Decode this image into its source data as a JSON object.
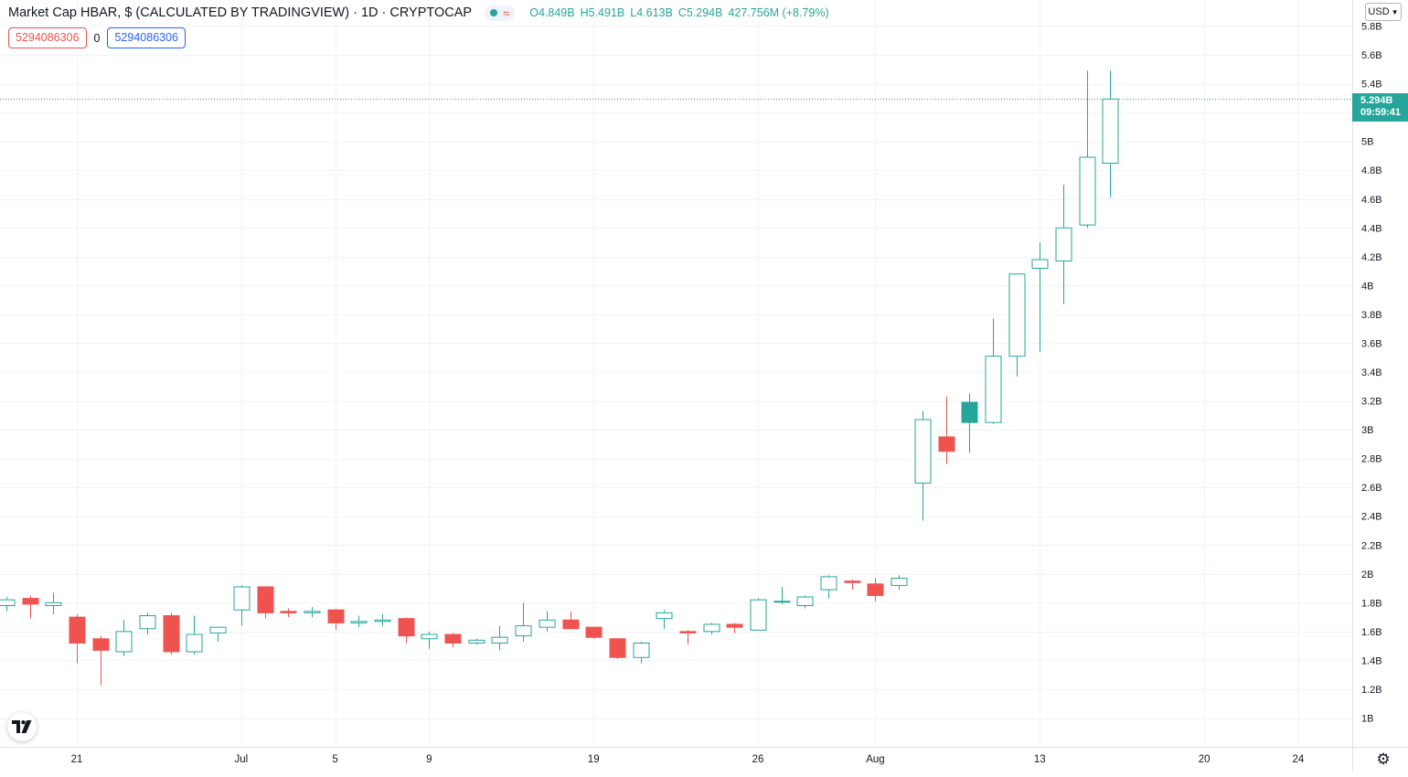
{
  "header": {
    "title": "Market Cap HBAR, $ (CALCULATED BY TRADINGVIEW) · 1D · CRYPTOCAP",
    "status_dot_color": "#26a69a",
    "approx_symbol": "≈",
    "ohlc": {
      "open_label": "O",
      "open": "4.849B",
      "high_label": "H",
      "high": "5.491B",
      "low_label": "L",
      "low": "4.613B",
      "close_label": "C",
      "close": "5.294B",
      "change": "427.756M (+8.79%)"
    }
  },
  "badges": {
    "left_value": "5294086306",
    "middle": "0",
    "right_value": "5294086306"
  },
  "currency_selector": {
    "label": "USD",
    "icon": "chevron-down-icon"
  },
  "price_label": {
    "value": "5.294B",
    "countdown": "09:59:41"
  },
  "colors": {
    "up": "#26a69a",
    "down": "#ef5350",
    "grid": "#f0f3fa",
    "axis_text": "#131722"
  },
  "chart_data": {
    "type": "candlestick",
    "title": "Market Cap HBAR, $ (CALCULATED BY TRADINGVIEW)",
    "interval": "1D",
    "unit": "B",
    "y_axis": {
      "range": [
        0.8,
        5.9
      ],
      "ticks": [
        1.0,
        1.2,
        1.4,
        1.6,
        1.8,
        2.0,
        2.2,
        2.4,
        2.6,
        2.8,
        3.0,
        3.2,
        3.4,
        3.6,
        3.8,
        4.0,
        4.2,
        4.4,
        4.6,
        4.8,
        5.0,
        5.4,
        5.6,
        5.8
      ],
      "tick_labels": [
        "1B",
        "1.2B",
        "1.4B",
        "1.6B",
        "1.8B",
        "2B",
        "2.2B",
        "2.4B",
        "2.6B",
        "2.8B",
        "3B",
        "3.2B",
        "3.4B",
        "3.6B",
        "3.8B",
        "4B",
        "4.2B",
        "4.4B",
        "4.6B",
        "4.8B",
        "5B",
        "5.4B",
        "5.6B",
        "5.8B"
      ]
    },
    "x_axis": {
      "range_days": [
        -3.27,
        54.3
      ],
      "ticks": [
        {
          "day": 0,
          "label": "21"
        },
        {
          "day": 7,
          "label": "Jul"
        },
        {
          "day": 11,
          "label": "5"
        },
        {
          "day": 15,
          "label": "9"
        },
        {
          "day": 22,
          "label": "19"
        },
        {
          "day": 29,
          "label": "26"
        },
        {
          "day": 34,
          "label": "Aug"
        },
        {
          "day": 41,
          "label": "13"
        },
        {
          "day": 48,
          "label": "20"
        },
        {
          "day": 52,
          "label": "24"
        }
      ]
    },
    "last_price": 5.294,
    "candles": [
      {
        "d": -3,
        "o": 1.78,
        "h": 1.84,
        "l": 1.74,
        "c": 1.82
      },
      {
        "d": -2,
        "o": 1.83,
        "h": 1.85,
        "l": 1.69,
        "c": 1.79
      },
      {
        "d": -1,
        "o": 1.78,
        "h": 1.87,
        "l": 1.72,
        "c": 1.8
      },
      {
        "d": 0,
        "o": 1.7,
        "h": 1.72,
        "l": 1.38,
        "c": 1.52
      },
      {
        "d": 1,
        "o": 1.55,
        "h": 1.57,
        "l": 1.23,
        "c": 1.47
      },
      {
        "d": 2,
        "o": 1.46,
        "h": 1.68,
        "l": 1.43,
        "c": 1.6
      },
      {
        "d": 3,
        "o": 1.62,
        "h": 1.73,
        "l": 1.58,
        "c": 1.71
      },
      {
        "d": 4,
        "o": 1.71,
        "h": 1.73,
        "l": 1.44,
        "c": 1.46
      },
      {
        "d": 5,
        "o": 1.46,
        "h": 1.71,
        "l": 1.44,
        "c": 1.58
      },
      {
        "d": 6,
        "o": 1.59,
        "h": 1.63,
        "l": 1.53,
        "c": 1.63
      },
      {
        "d": 7,
        "o": 1.75,
        "h": 1.92,
        "l": 1.64,
        "c": 1.91
      },
      {
        "d": 8,
        "o": 1.91,
        "h": 1.91,
        "l": 1.69,
        "c": 1.73
      },
      {
        "d": 9,
        "o": 1.74,
        "h": 1.76,
        "l": 1.7,
        "c": 1.73
      },
      {
        "d": 10,
        "o": 1.73,
        "h": 1.77,
        "l": 1.7,
        "c": 1.74
      },
      {
        "d": 11,
        "o": 1.75,
        "h": 1.76,
        "l": 1.61,
        "c": 1.66
      },
      {
        "d": 12,
        "o": 1.66,
        "h": 1.71,
        "l": 1.63,
        "c": 1.67
      },
      {
        "d": 13,
        "o": 1.67,
        "h": 1.72,
        "l": 1.64,
        "c": 1.68
      },
      {
        "d": 14,
        "o": 1.69,
        "h": 1.7,
        "l": 1.52,
        "c": 1.57
      },
      {
        "d": 15,
        "o": 1.55,
        "h": 1.6,
        "l": 1.48,
        "c": 1.58
      },
      {
        "d": 16,
        "o": 1.58,
        "h": 1.59,
        "l": 1.49,
        "c": 1.52
      },
      {
        "d": 17,
        "o": 1.52,
        "h": 1.55,
        "l": 1.51,
        "c": 1.54
      },
      {
        "d": 18,
        "o": 1.52,
        "h": 1.64,
        "l": 1.47,
        "c": 1.56
      },
      {
        "d": 19,
        "o": 1.57,
        "h": 1.8,
        "l": 1.53,
        "c": 1.64
      },
      {
        "d": 20,
        "o": 1.63,
        "h": 1.74,
        "l": 1.6,
        "c": 1.68
      },
      {
        "d": 21,
        "o": 1.68,
        "h": 1.74,
        "l": 1.62,
        "c": 1.62
      },
      {
        "d": 22,
        "o": 1.63,
        "h": 1.63,
        "l": 1.55,
        "c": 1.56
      },
      {
        "d": 23,
        "o": 1.55,
        "h": 1.55,
        "l": 1.41,
        "c": 1.42
      },
      {
        "d": 24,
        "o": 1.42,
        "h": 1.53,
        "l": 1.38,
        "c": 1.52
      },
      {
        "d": 25,
        "o": 1.69,
        "h": 1.75,
        "l": 1.62,
        "c": 1.73
      },
      {
        "d": 26,
        "o": 1.6,
        "h": 1.61,
        "l": 1.51,
        "c": 1.59
      },
      {
        "d": 27,
        "o": 1.6,
        "h": 1.66,
        "l": 1.58,
        "c": 1.65
      },
      {
        "d": 28,
        "o": 1.65,
        "h": 1.66,
        "l": 1.59,
        "c": 1.63
      },
      {
        "d": 29,
        "o": 1.61,
        "h": 1.83,
        "l": 1.61,
        "c": 1.82
      },
      {
        "d": 30,
        "o": 1.81,
        "h": 1.91,
        "l": 1.79,
        "c": 1.81
      },
      {
        "d": 31,
        "o": 1.78,
        "h": 1.85,
        "l": 1.76,
        "c": 1.84
      },
      {
        "d": 32,
        "o": 1.89,
        "h": 1.99,
        "l": 1.83,
        "c": 1.98
      },
      {
        "d": 33,
        "o": 1.95,
        "h": 1.96,
        "l": 1.89,
        "c": 1.94
      },
      {
        "d": 34,
        "o": 1.93,
        "h": 1.97,
        "l": 1.81,
        "c": 1.85
      },
      {
        "d": 35,
        "o": 1.92,
        "h": 1.99,
        "l": 1.89,
        "c": 1.97
      },
      {
        "d": 36,
        "o": 2.63,
        "h": 3.13,
        "l": 2.37,
        "c": 3.07
      },
      {
        "d": 37,
        "o": 2.95,
        "h": 3.23,
        "l": 2.76,
        "c": 2.85
      },
      {
        "d": 38,
        "o": 3.05,
        "h": 3.25,
        "l": 2.84,
        "c": 3.19,
        "filled": true
      },
      {
        "d": 39,
        "o": 3.05,
        "h": 3.77,
        "l": 3.04,
        "c": 3.51
      },
      {
        "d": 40,
        "o": 3.51,
        "h": 4.08,
        "l": 3.37,
        "c": 4.08
      },
      {
        "d": 41,
        "o": 4.12,
        "h": 4.3,
        "l": 3.54,
        "c": 4.18
      },
      {
        "d": 42,
        "o": 4.17,
        "h": 4.7,
        "l": 3.87,
        "c": 4.4
      },
      {
        "d": 43,
        "o": 4.42,
        "h": 5.49,
        "l": 4.4,
        "c": 4.89
      },
      {
        "d": 44,
        "o": 4.849,
        "h": 5.491,
        "l": 4.613,
        "c": 5.294
      }
    ]
  }
}
